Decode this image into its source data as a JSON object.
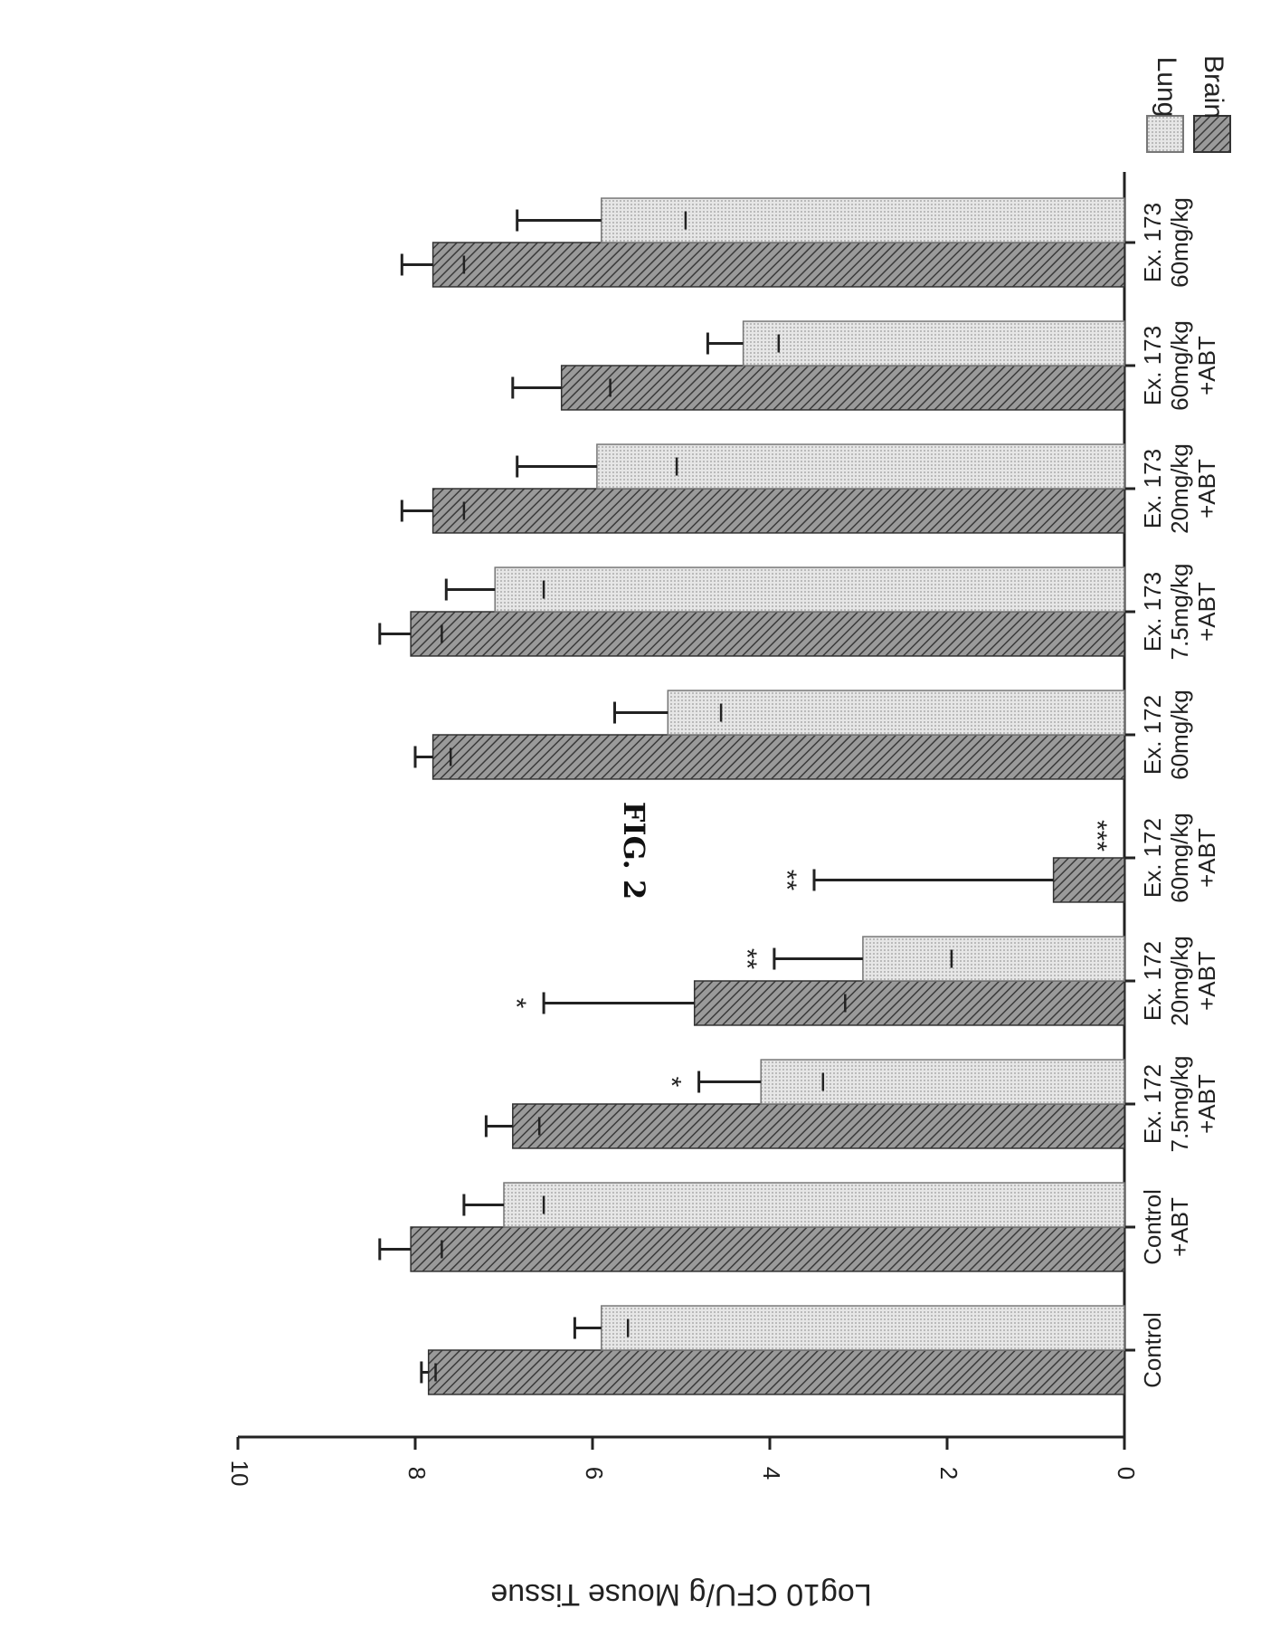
{
  "figure_label": "FIG. 2",
  "chart_data": {
    "type": "bar",
    "ylabel": "Log10 CFU/g Mouse Tissue",
    "ylim": [
      0,
      10
    ],
    "yticks": [
      "0",
      "2",
      "4",
      "6",
      "8",
      "10"
    ],
    "grid": false,
    "legend_position": "top-right",
    "categories": [
      [
        "Control"
      ],
      [
        "Control",
        "+ABT"
      ],
      [
        "Ex. 172",
        "7.5mg/kg",
        "+ABT"
      ],
      [
        "Ex. 172",
        "20mg/kg",
        "+ABT"
      ],
      [
        "Ex. 172",
        "60mg/kg",
        "+ABT"
      ],
      [
        "Ex. 172",
        "60mg/kg"
      ],
      [
        "Ex. 173",
        "7.5mg/kg",
        "+ABT"
      ],
      [
        "Ex. 173",
        "20mg/kg",
        "+ABT"
      ],
      [
        "Ex. 173",
        "60mg/kg",
        "+ABT"
      ],
      [
        "Ex. 173",
        "60mg/kg"
      ]
    ],
    "series": [
      {
        "name": "Brain",
        "pattern": "hatched",
        "color": "#7a7a7a",
        "values": [
          7.85,
          8.05,
          6.9,
          4.85,
          0.8,
          7.8,
          8.05,
          7.8,
          6.35,
          7.8
        ],
        "errors": [
          0.08,
          0.35,
          0.3,
          1.7,
          2.7,
          0.2,
          0.35,
          0.35,
          0.55,
          0.35
        ],
        "significance": [
          "",
          "",
          "",
          "*",
          "**",
          "",
          "",
          "",
          "",
          ""
        ]
      },
      {
        "name": "Lung",
        "pattern": "dotted",
        "color": "#d4d4d4",
        "values": [
          5.9,
          7.0,
          4.1,
          2.95,
          0,
          5.15,
          7.1,
          5.95,
          4.3,
          5.9
        ],
        "errors": [
          0.3,
          0.45,
          0.7,
          1.0,
          0,
          0.6,
          0.55,
          0.9,
          0.4,
          0.95
        ],
        "significance": [
          "",
          "",
          "*",
          "**",
          "***",
          "",
          "",
          "",
          "",
          ""
        ]
      }
    ]
  }
}
